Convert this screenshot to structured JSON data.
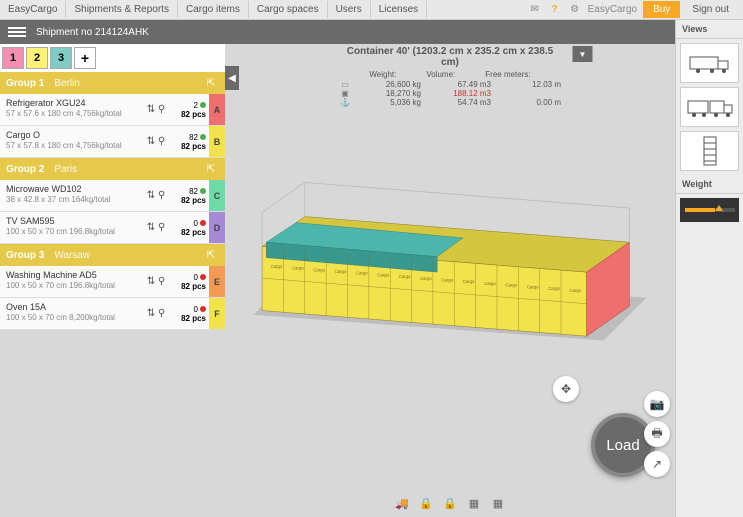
{
  "topbar": {
    "items": [
      "EasyCargo",
      "Shipments & Reports",
      "Cargo items",
      "Cargo spaces",
      "Users",
      "Licenses"
    ],
    "app_label": "EasyCargo",
    "buy": "Buy",
    "signout": "Sign out"
  },
  "shipment": {
    "label": "Shipment no 214124AHK"
  },
  "tabs": {
    "t1": "1",
    "t2": "2",
    "t3": "3",
    "plus": "+"
  },
  "groups": [
    {
      "label": "Group 1",
      "city": "Berlin",
      "ext": "⇱",
      "header_bg": "#e6c84a",
      "items": [
        {
          "name": "Refrigerator XGU24",
          "dims": "57 x 57.6 x 180 cm 4,756kg/total",
          "qty_top": "2",
          "dot": "#4caf50",
          "qty_bot": "82 pcs",
          "letter": "A",
          "color": "#ef6e6e"
        },
        {
          "name": "Cargo O",
          "dims": "57 x 57.8 x 180 cm 4,756kg/total",
          "qty_top": "82",
          "dot": "#4caf50",
          "qty_bot": "82 pcs",
          "letter": "B",
          "color": "#f2e24b"
        }
      ]
    },
    {
      "label": "Group 2",
      "city": "Paris",
      "ext": "⇱",
      "header_bg": "#e6c84a",
      "items": [
        {
          "name": "Microwave WD102",
          "dims": "38 x 42.8 x 37 cm 164kg/total",
          "qty_top": "82",
          "dot": "#4caf50",
          "qty_bot": "82 pcs",
          "letter": "C",
          "color": "#6fd9a8"
        },
        {
          "name": "TV SAM595",
          "dims": "100 x 50 x 70 cm 196.8kg/total",
          "qty_top": "0",
          "dot": "#d32f2f",
          "qty_bot": "82 pcs",
          "letter": "D",
          "color": "#a58ad6"
        }
      ]
    },
    {
      "label": "Group 3",
      "city": "Warsaw",
      "ext": "⇱",
      "header_bg": "#e6c84a",
      "items": [
        {
          "name": "Washing Machine AD5",
          "dims": "100 x 50 x 70 cm 196.8kg/total",
          "qty_top": "0",
          "dot": "#d32f2f",
          "qty_bot": "82 pcs",
          "letter": "E",
          "color": "#f29b54"
        },
        {
          "name": "Oven 15A",
          "dims": "100 x 50 x 70 cm 8,200kg/total",
          "qty_top": "0",
          "dot": "#d32f2f",
          "qty_bot": "82 pcs",
          "letter": "F",
          "color": "#f2e24b"
        }
      ]
    }
  ],
  "container": {
    "title": "Container 40' (1203.2 cm x 235.2 cm x 238.5 cm)",
    "h_weight": "Weight:",
    "h_volume": "Volume:",
    "h_free": "Free meters:",
    "rows": [
      {
        "icon": "▭",
        "w": "26,600 kg",
        "v": "67.49 m3",
        "f": "12.03 m"
      },
      {
        "icon": "▣",
        "w": "18,270 kg",
        "v": "188.12 m3",
        "f": "",
        "v_red": true
      },
      {
        "icon": "⚓",
        "w": "5,036 kg",
        "v": "54.74 m3",
        "f": "0.00 m"
      }
    ]
  },
  "load_btn": "Load",
  "right": {
    "views": "Views",
    "weight": "Weight"
  },
  "viz": {
    "body_color": "#f2e24b",
    "top_color": "#4db6ac",
    "end_color": "#ef6e6e",
    "edge_color": "#7a6b1e"
  }
}
